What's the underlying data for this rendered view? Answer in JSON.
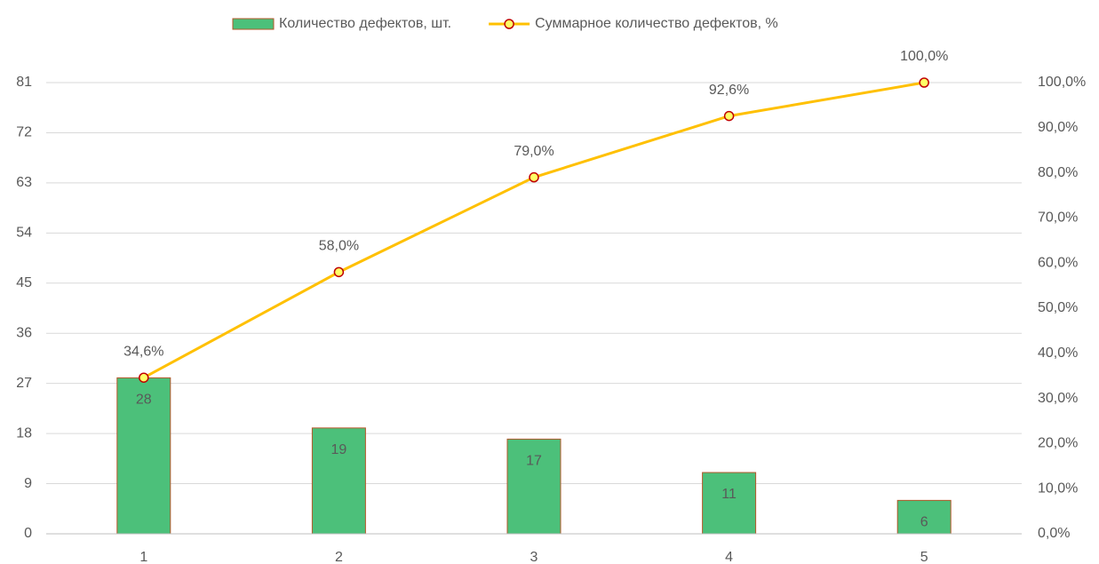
{
  "chart_data": {
    "type": "bar_line",
    "categories": [
      "1",
      "2",
      "3",
      "4",
      "5"
    ],
    "series": [
      {
        "name": "Количество дефектов, шт.",
        "type": "bar",
        "color": "#4cc07a",
        "values": [
          28,
          19,
          17,
          11,
          6
        ]
      },
      {
        "name": "Суммарное количество дефектов, %",
        "type": "line",
        "axis": "y2",
        "color": "#ffc000",
        "values": [
          34.6,
          58.0,
          79.0,
          92.6,
          100.0
        ],
        "value_labels": [
          "34,6%",
          "58,0%",
          "79,0%",
          "92,6%",
          "100,0%"
        ]
      }
    ],
    "ylim": [
      0,
      81
    ],
    "yticks": [
      0,
      9,
      18,
      27,
      36,
      45,
      54,
      63,
      72,
      81
    ],
    "y2lim": [
      0,
      100
    ],
    "y2ticks": [
      {
        "value": 0,
        "label": "0,0%"
      },
      {
        "value": 10,
        "label": "10,0%"
      },
      {
        "value": 20,
        "label": "20,0%"
      },
      {
        "value": 30,
        "label": "30,0%"
      },
      {
        "value": 40,
        "label": "40,0%"
      },
      {
        "value": 50,
        "label": "50,0%"
      },
      {
        "value": 60,
        "label": "60,0%"
      },
      {
        "value": 70,
        "label": "70,0%"
      },
      {
        "value": 80,
        "label": "80,0%"
      },
      {
        "value": 90,
        "label": "90,0%"
      },
      {
        "value": 100,
        "label": "100,0%"
      }
    ],
    "grid": true,
    "legend": "top"
  }
}
